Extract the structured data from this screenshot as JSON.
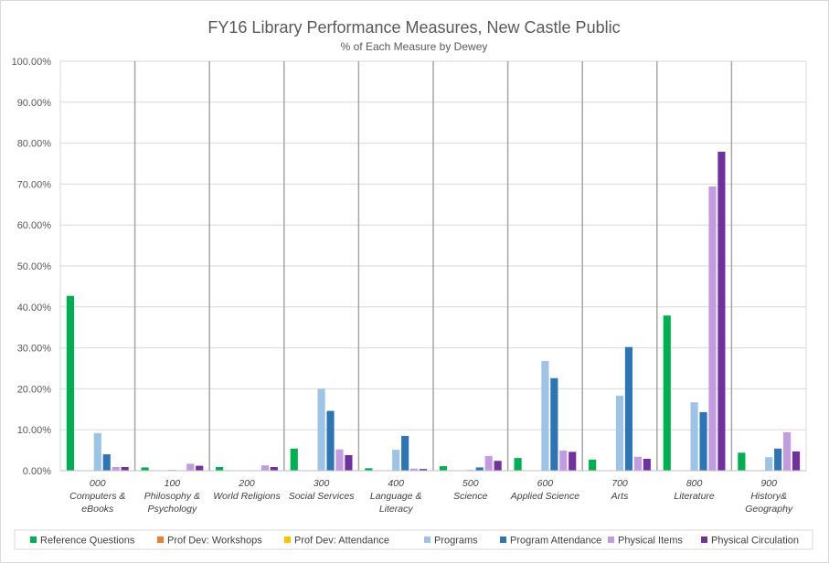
{
  "chart_data": {
    "type": "bar",
    "title": "FY16 Library Performance Measures, New Castle Public",
    "subtitle": "% of Each Measure by Dewey",
    "xlabel": "",
    "ylabel": "",
    "ylim": [
      0,
      100
    ],
    "y_ticks": [
      "0.00%",
      "10.00%",
      "20.00%",
      "30.00%",
      "40.00%",
      "50.00%",
      "60.00%",
      "70.00%",
      "80.00%",
      "90.00%",
      "100.00%"
    ],
    "grid": true,
    "legend_position": "bottom",
    "categories": [
      [
        "000",
        "Computers &",
        "eBooks"
      ],
      [
        "100",
        "Philosophy &",
        "Psychology"
      ],
      [
        "200",
        "World Religions"
      ],
      [
        "300",
        "Social Services"
      ],
      [
        "400",
        "Language &",
        "Literacy"
      ],
      [
        "500",
        "Science"
      ],
      [
        "600",
        "Applied Science"
      ],
      [
        "700",
        "Arts"
      ],
      [
        "800",
        "Literature"
      ],
      [
        "900",
        "History&",
        "Geography"
      ]
    ],
    "series": [
      {
        "name": "Reference Questions",
        "color": "#00b050",
        "values": [
          42.7,
          0.8,
          0.9,
          5.4,
          0.6,
          1.1,
          3.1,
          2.7,
          37.9,
          4.4
        ]
      },
      {
        "name": "Prof Dev: Workshops",
        "color": "#ed7d31",
        "values": [
          0,
          0,
          0,
          0,
          0,
          0,
          0,
          0,
          0,
          0
        ]
      },
      {
        "name": "Prof Dev: Attendance",
        "color": "#ffc000",
        "values": [
          0,
          0,
          0,
          0,
          0,
          0,
          0,
          0,
          0,
          0
        ]
      },
      {
        "name": "Programs",
        "color": "#9dc3e6",
        "values": [
          9.2,
          0.2,
          0.0,
          20.0,
          5.1,
          0.2,
          26.8,
          18.3,
          16.7,
          3.3
        ]
      },
      {
        "name": "Program Attendance",
        "color": "#2e75b6",
        "values": [
          4.0,
          0.0,
          0.0,
          14.6,
          8.5,
          0.8,
          22.6,
          30.2,
          14.3,
          5.4
        ]
      },
      {
        "name": "Physical Items",
        "color": "#c39be0",
        "values": [
          0.9,
          1.7,
          1.3,
          5.2,
          0.5,
          3.6,
          4.9,
          3.4,
          69.4,
          9.4
        ]
      },
      {
        "name": "Physical Circulation",
        "color": "#7030a0",
        "values": [
          0.9,
          1.2,
          0.9,
          3.8,
          0.4,
          2.4,
          4.6,
          2.9,
          77.9,
          4.7
        ]
      }
    ]
  }
}
